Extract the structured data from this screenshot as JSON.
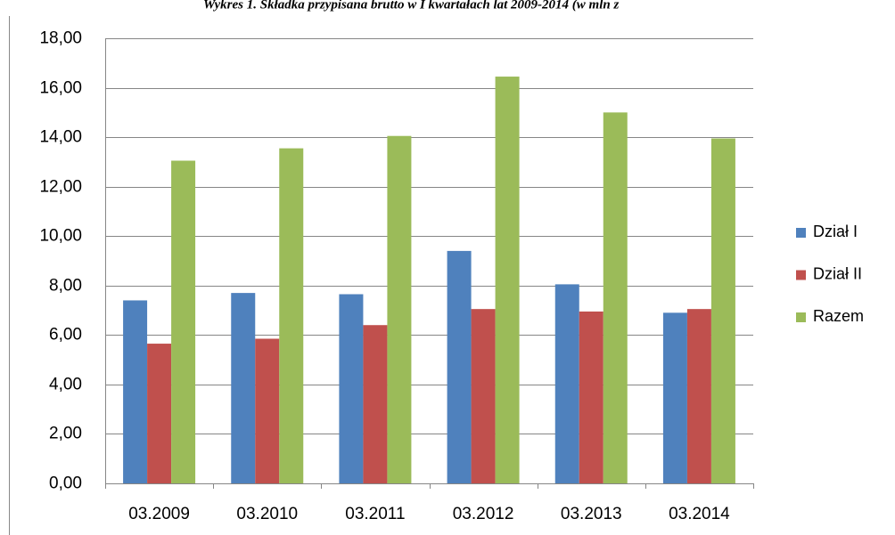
{
  "chart_data": {
    "type": "bar",
    "title": "Wykres 1. Składka przypisana brutto w I kwartałach lat 2009-2014 (w mln z",
    "categories": [
      "03.2009",
      "03.2010",
      "03.2011",
      "03.2012",
      "03.2013",
      "03.2014"
    ],
    "series": [
      {
        "name": "Dział I",
        "color": "#4f81bd",
        "values": [
          7.4,
          7.7,
          7.65,
          9.4,
          8.05,
          6.9
        ]
      },
      {
        "name": "Dział II",
        "color": "#c0504d",
        "values": [
          5.65,
          5.85,
          6.4,
          7.05,
          6.95,
          7.05
        ]
      },
      {
        "name": "Razem",
        "color": "#9bbb59",
        "values": [
          13.05,
          13.55,
          14.05,
          16.45,
          15.0,
          13.95
        ]
      }
    ],
    "ylim": [
      0,
      18
    ],
    "yticks": [
      {
        "value": 0,
        "label": "0,00"
      },
      {
        "value": 2,
        "label": "2,00"
      },
      {
        "value": 4,
        "label": "4,00"
      },
      {
        "value": 6,
        "label": "6,00"
      },
      {
        "value": 8,
        "label": "8,00"
      },
      {
        "value": 10,
        "label": "10,00"
      },
      {
        "value": 12,
        "label": "12,00"
      },
      {
        "value": 14,
        "label": "14,00"
      },
      {
        "value": 16,
        "label": "16,00"
      },
      {
        "value": 18,
        "label": "18,00"
      }
    ],
    "grid": true,
    "legend": "right"
  }
}
